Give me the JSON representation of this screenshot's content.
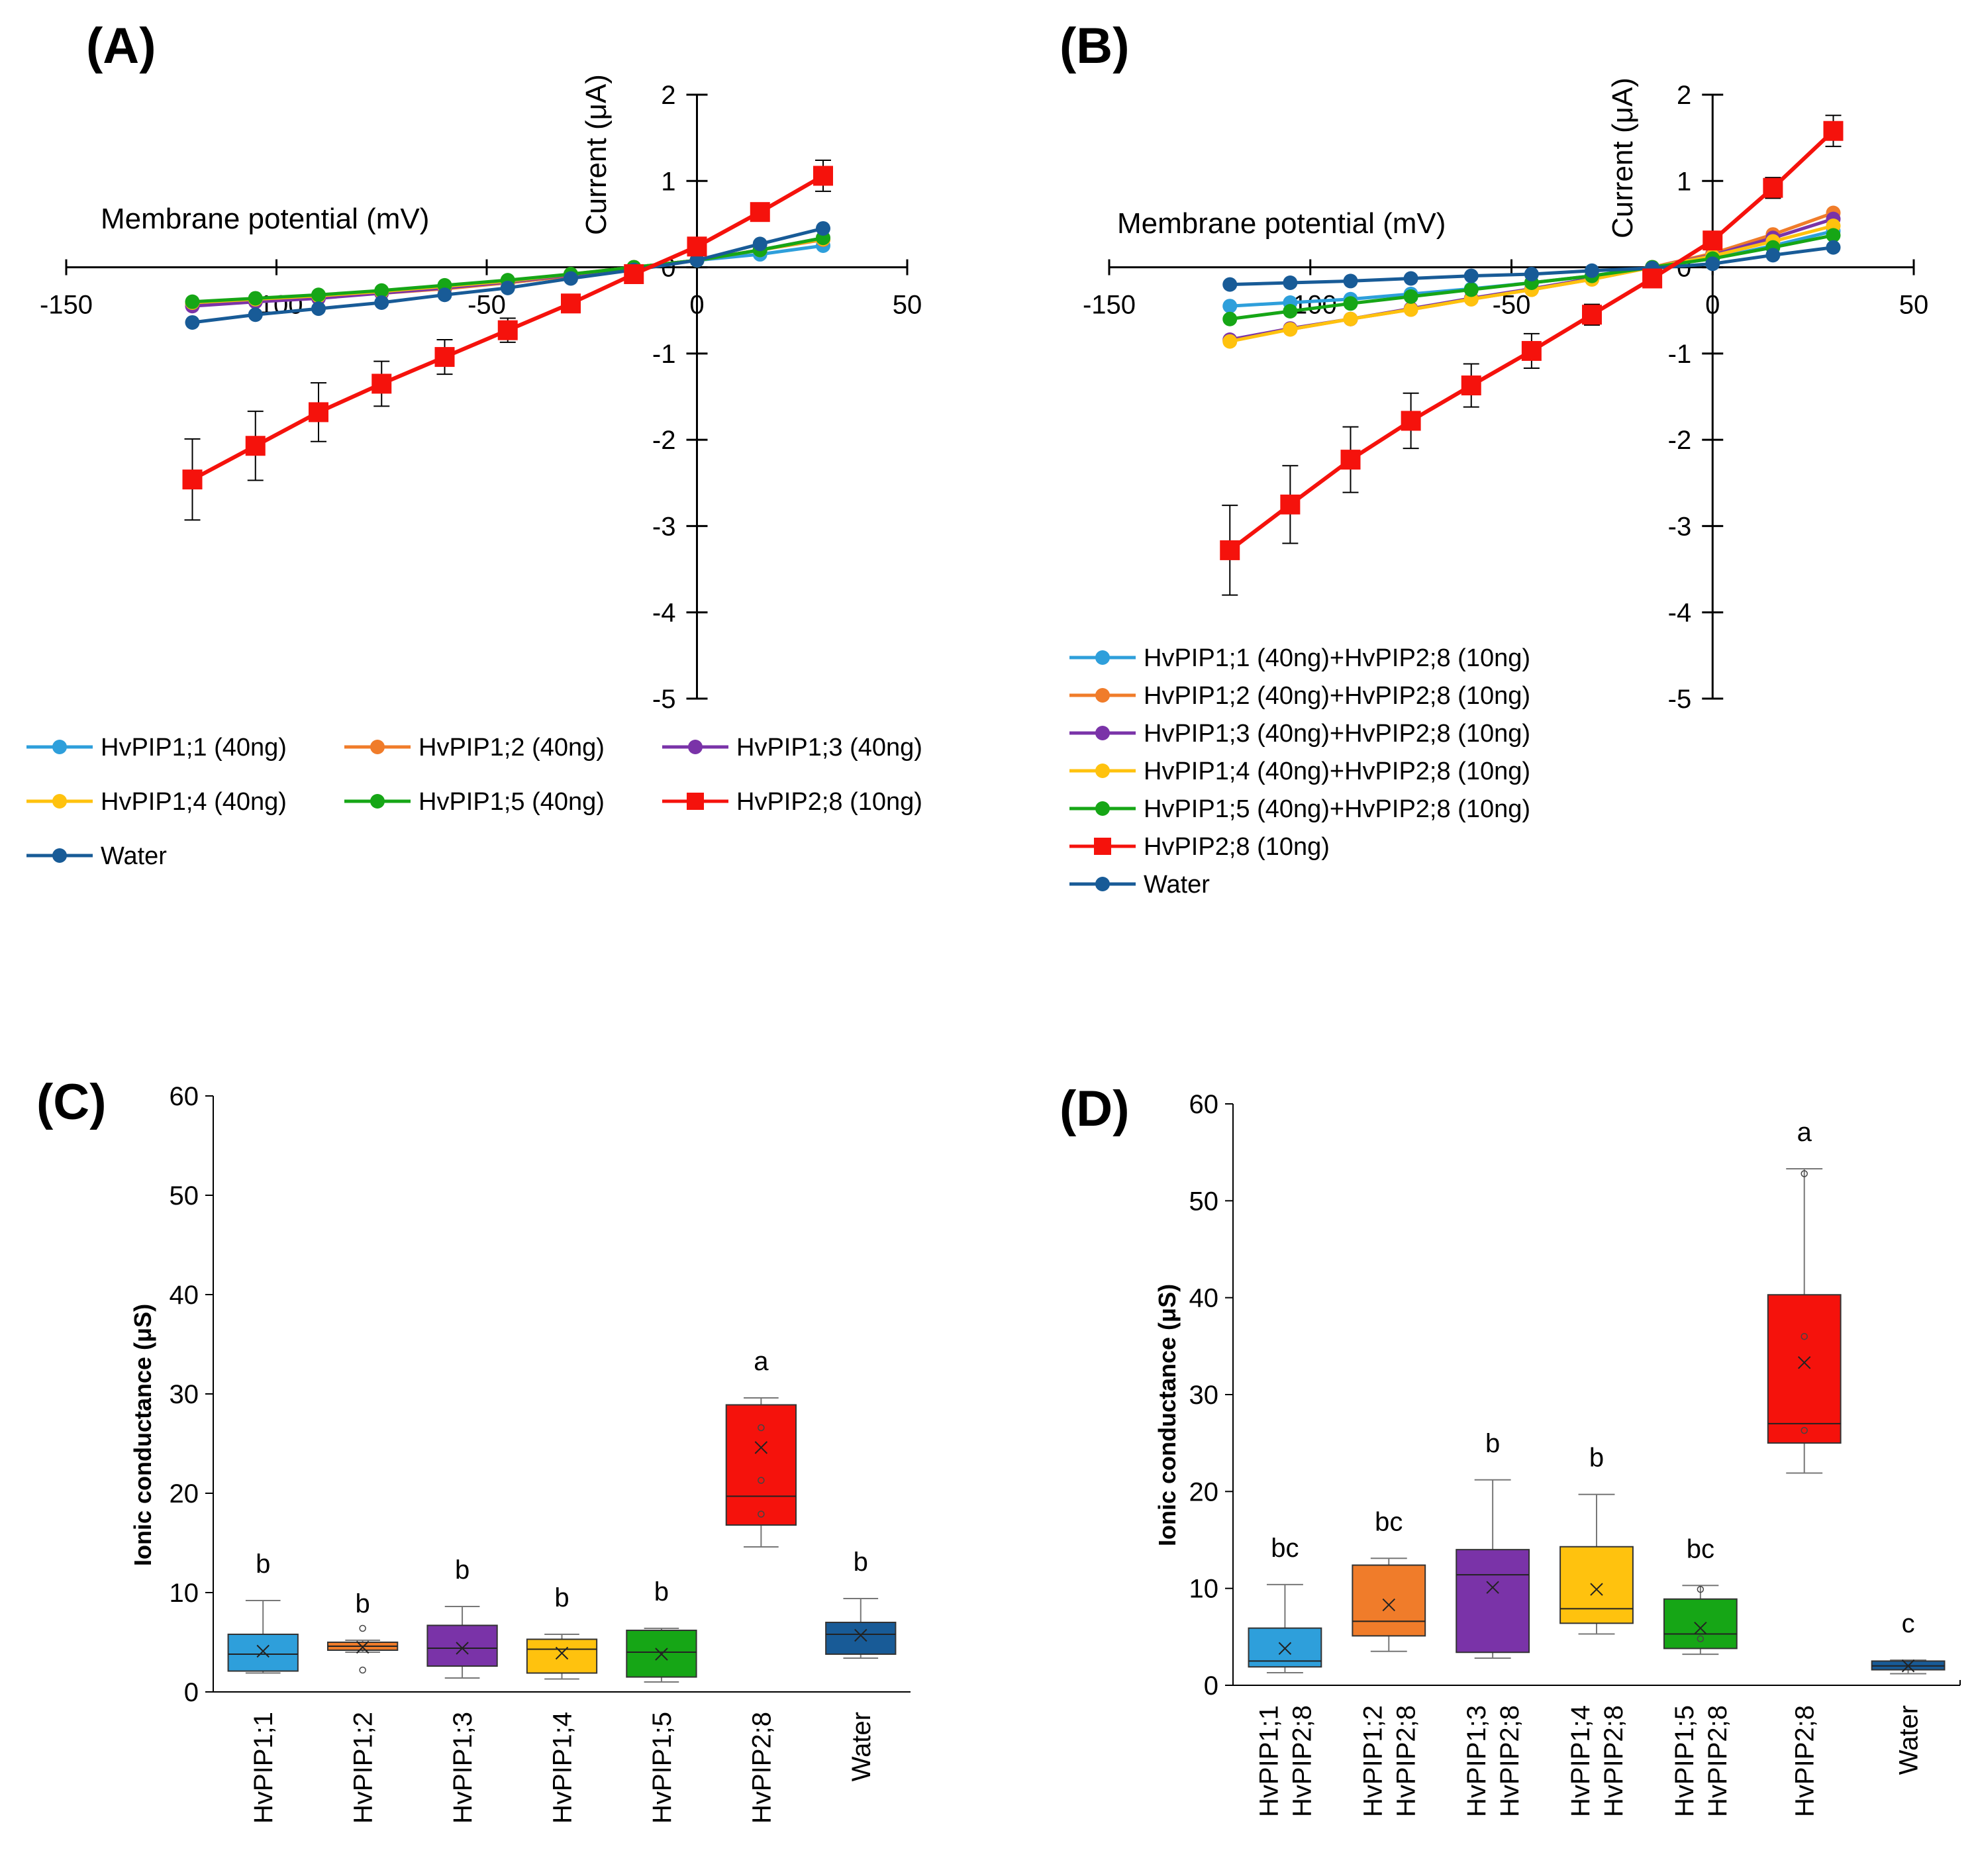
{
  "chart_data": [
    {
      "panel": "(A)",
      "type": "line",
      "xlabel": "Membrane potential (mV)",
      "ylabel": "Current (μA)",
      "xlim": [
        -150,
        50
      ],
      "ylim": [
        -5,
        2
      ],
      "xticks": [
        "-150",
        "-100",
        "-50",
        "0",
        "50"
      ],
      "yticks": [
        "2",
        "1",
        "0",
        "-1",
        "-2",
        "-3",
        "-4",
        "-5"
      ],
      "x": [
        -120,
        -105,
        -90,
        -75,
        -60,
        -45,
        -30,
        -15,
        0,
        15,
        30
      ],
      "series": [
        {
          "name": "HvPIP1;1 (40ng)",
          "color": "#2e9fdb",
          "marker": "circle",
          "values": [
            -0.42,
            -0.38,
            -0.34,
            -0.3,
            -0.24,
            -0.18,
            -0.1,
            0.0,
            0.08,
            0.15,
            0.25
          ]
        },
        {
          "name": "HvPIP1;2 (40ng)",
          "color": "#f07c2a",
          "marker": "circle",
          "values": [
            -0.42,
            -0.38,
            -0.34,
            -0.3,
            -0.25,
            -0.18,
            -0.1,
            0.0,
            0.08,
            0.2,
            0.32
          ]
        },
        {
          "name": "HvPIP1;3 (40ng)",
          "color": "#7a33a8",
          "marker": "circle",
          "values": [
            -0.45,
            -0.4,
            -0.36,
            -0.3,
            -0.24,
            -0.17,
            -0.09,
            0.0,
            0.08,
            0.2,
            0.34
          ]
        },
        {
          "name": "HvPIP1;4 (40ng)",
          "color": "#ffc20e",
          "marker": "circle",
          "values": [
            -0.41,
            -0.37,
            -0.33,
            -0.28,
            -0.22,
            -0.16,
            -0.08,
            0.0,
            0.08,
            0.2,
            0.33
          ]
        },
        {
          "name": "HvPIP1;5 (40ng)",
          "color": "#16a616",
          "marker": "circle",
          "values": [
            -0.4,
            -0.36,
            -0.32,
            -0.27,
            -0.21,
            -0.15,
            -0.08,
            0.0,
            0.08,
            0.2,
            0.34
          ]
        },
        {
          "name": "HvPIP2;8 (10ng)",
          "color": "#f5120c",
          "marker": "square",
          "values": [
            -2.46,
            -2.07,
            -1.68,
            -1.35,
            -1.04,
            -0.73,
            -0.42,
            -0.08,
            0.24,
            0.64,
            1.06
          ],
          "errors": [
            0.47,
            0.4,
            0.34,
            0.26,
            0.2,
            0.14,
            0.08,
            0.05,
            0.06,
            0.1,
            0.18
          ]
        },
        {
          "name": "Water",
          "color": "#185b97",
          "marker": "circle",
          "values": [
            -0.64,
            -0.55,
            -0.48,
            -0.41,
            -0.32,
            -0.24,
            -0.13,
            -0.03,
            0.08,
            0.27,
            0.45
          ]
        }
      ],
      "legend_layout": "3-columns"
    },
    {
      "panel": "(B)",
      "type": "line",
      "xlabel": "Membrane potential (mV)",
      "ylabel": "Current (μA)",
      "xlim": [
        -150,
        50
      ],
      "ylim": [
        -5,
        2
      ],
      "xticks": [
        "-150",
        "-100",
        "-50",
        "0",
        "50"
      ],
      "yticks": [
        "2",
        "1",
        "0",
        "-1",
        "-2",
        "-3",
        "-4",
        "-5"
      ],
      "x": [
        -120,
        -105,
        -90,
        -75,
        -60,
        -45,
        -30,
        -15,
        0,
        15,
        30
      ],
      "series": [
        {
          "name": "HvPIP1;1 (40ng)+HvPIP2;8 (10ng)",
          "color": "#2e9fdb",
          "marker": "circle",
          "values": [
            -0.45,
            -0.41,
            -0.37,
            -0.31,
            -0.25,
            -0.18,
            -0.1,
            0.0,
            0.1,
            0.25,
            0.42
          ]
        },
        {
          "name": "HvPIP1;2 (40ng)+HvPIP2;8 (10ng)",
          "color": "#f07c2a",
          "marker": "circle",
          "values": [
            -0.85,
            -0.72,
            -0.6,
            -0.49,
            -0.37,
            -0.26,
            -0.14,
            0.0,
            0.16,
            0.38,
            0.63
          ]
        },
        {
          "name": "HvPIP1;3 (40ng)+HvPIP2;8 (10ng)",
          "color": "#7a33a8",
          "marker": "circle",
          "values": [
            -0.84,
            -0.71,
            -0.6,
            -0.48,
            -0.36,
            -0.25,
            -0.13,
            0.0,
            0.14,
            0.34,
            0.56
          ]
        },
        {
          "name": "HvPIP1;4 (40ng)+HvPIP2;8 (10ng)",
          "color": "#ffc20e",
          "marker": "circle",
          "values": [
            -0.86,
            -0.72,
            -0.6,
            -0.49,
            -0.37,
            -0.26,
            -0.14,
            0.0,
            0.13,
            0.3,
            0.48
          ]
        },
        {
          "name": "HvPIP1;5 (40ng)+HvPIP2;8 (10ng)",
          "color": "#16a616",
          "marker": "circle",
          "values": [
            -0.6,
            -0.51,
            -0.42,
            -0.34,
            -0.26,
            -0.18,
            -0.1,
            0.0,
            0.1,
            0.23,
            0.37
          ]
        },
        {
          "name": "HvPIP2;8 (10ng)",
          "color": "#f5120c",
          "marker": "square",
          "values": [
            -3.28,
            -2.75,
            -2.23,
            -1.78,
            -1.37,
            -0.97,
            -0.55,
            -0.13,
            0.31,
            0.92,
            1.58
          ],
          "errors": [
            0.52,
            0.45,
            0.38,
            0.32,
            0.25,
            0.2,
            0.12,
            0.06,
            0.1,
            0.12,
            0.18
          ]
        },
        {
          "name": "Water",
          "color": "#185b97",
          "marker": "circle",
          "values": [
            -0.2,
            -0.18,
            -0.16,
            -0.13,
            -0.1,
            -0.08,
            -0.04,
            -0.01,
            0.04,
            0.14,
            0.23
          ]
        }
      ],
      "legend_layout": "1-column"
    },
    {
      "panel": "(C)",
      "type": "box",
      "ylabel": "Ionic conductance (μS)",
      "ylim": [
        0,
        60
      ],
      "yticks": [
        "0",
        "10",
        "20",
        "30",
        "40",
        "50",
        "60"
      ],
      "categories": [
        [
          "HvPIP1;1"
        ],
        [
          "HvPIP1;2"
        ],
        [
          "HvPIP1;3"
        ],
        [
          "HvPIP1;4"
        ],
        [
          "HvPIP1;5"
        ],
        [
          "HvPIP2;8"
        ],
        [
          "Water"
        ]
      ],
      "boxes": [
        {
          "color": "#2e9fdb",
          "min": 1.9,
          "q1": 2.1,
          "median": 3.8,
          "q3": 5.8,
          "max": 9.2,
          "mean": 4.1,
          "letter": "b",
          "points": []
        },
        {
          "color": "#f07c2a",
          "min": 4.0,
          "q1": 4.2,
          "median": 4.6,
          "q3": 5.0,
          "max": 5.2,
          "mean": 4.5,
          "letter": "b",
          "points": [
            6.4,
            2.2
          ]
        },
        {
          "color": "#7a33a8",
          "min": 1.4,
          "q1": 2.6,
          "median": 4.4,
          "q3": 6.7,
          "max": 8.6,
          "mean": 4.4,
          "letter": "b",
          "points": []
        },
        {
          "color": "#ffc20e",
          "min": 1.3,
          "q1": 1.9,
          "median": 4.3,
          "q3": 5.3,
          "max": 5.8,
          "mean": 3.9,
          "letter": "b",
          "points": []
        },
        {
          "color": "#16a616",
          "min": 1.0,
          "q1": 1.5,
          "median": 4.0,
          "q3": 6.2,
          "max": 6.4,
          "mean": 3.8,
          "letter": "b",
          "points": []
        },
        {
          "color": "#f5120c",
          "min": 14.6,
          "q1": 16.8,
          "median": 19.7,
          "q3": 28.9,
          "max": 29.6,
          "mean": 24.6,
          "letter": "a",
          "points": [
            26.6,
            21.3,
            17.9
          ]
        },
        {
          "color": "#185b97",
          "min": 3.4,
          "q1": 3.8,
          "median": 5.8,
          "q3": 7.0,
          "max": 9.4,
          "mean": 5.7,
          "letter": "b",
          "points": []
        }
      ]
    },
    {
      "panel": "(D)",
      "type": "box",
      "ylabel": "Ionic conductance (μS)",
      "ylim": [
        0,
        60
      ],
      "yticks": [
        "0",
        "10",
        "20",
        "30",
        "40",
        "50",
        "60"
      ],
      "categories": [
        [
          "HvPIP1;1",
          "HvPIP2;8"
        ],
        [
          "HvPIP1;2",
          "HvPIP2;8"
        ],
        [
          "HvPIP1;3",
          "HvPIP2;8"
        ],
        [
          "HvPIP1;4",
          "HvPIP2;8"
        ],
        [
          "HvPIP1;5",
          "HvPIP2;8"
        ],
        [
          "HvPIP2;8"
        ],
        [
          "Water"
        ]
      ],
      "boxes": [
        {
          "color": "#2e9fdb",
          "min": 1.3,
          "q1": 1.9,
          "median": 2.5,
          "q3": 5.9,
          "max": 10.4,
          "mean": 3.8,
          "letter": "bc",
          "points": []
        },
        {
          "color": "#f07c2a",
          "min": 3.5,
          "q1": 5.1,
          "median": 6.6,
          "q3": 12.4,
          "max": 13.1,
          "mean": 8.3,
          "letter": "bc",
          "points": []
        },
        {
          "color": "#7a33a8",
          "min": 2.8,
          "q1": 3.4,
          "median": 11.4,
          "q3": 14.0,
          "max": 21.2,
          "mean": 10.1,
          "letter": "b",
          "points": []
        },
        {
          "color": "#ffc20e",
          "min": 5.3,
          "q1": 6.4,
          "median": 7.9,
          "q3": 14.3,
          "max": 19.7,
          "mean": 9.9,
          "letter": "b",
          "points": []
        },
        {
          "color": "#16a616",
          "min": 3.2,
          "q1": 3.8,
          "median": 5.3,
          "q3": 8.9,
          "max": 10.3,
          "mean": 5.9,
          "letter": "bc",
          "points": [
            9.9,
            4.8
          ]
        },
        {
          "color": "#f5120c",
          "min": 21.9,
          "q1": 25.0,
          "median": 27.0,
          "q3": 40.3,
          "max": 53.3,
          "mean": 33.3,
          "letter": "a",
          "points": [
            52.8,
            36.0,
            26.3
          ]
        },
        {
          "color": "#185b97",
          "min": 1.2,
          "q1": 1.6,
          "median": 2.0,
          "q3": 2.5,
          "max": 2.6,
          "mean": 2.0,
          "letter": "c",
          "points": []
        }
      ]
    }
  ]
}
